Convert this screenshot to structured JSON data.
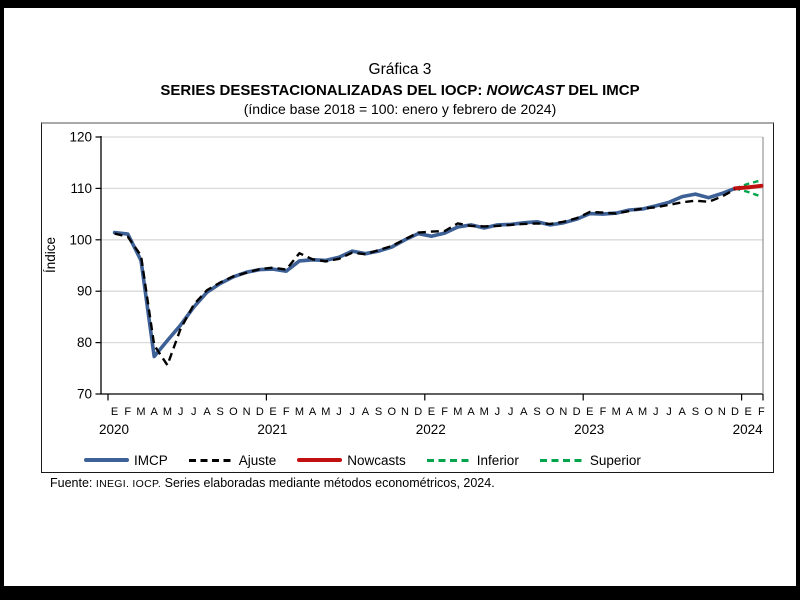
{
  "title": {
    "line1": "Gráfica 3",
    "line2_prefix": "SERIES DESESTACIONALIZADAS DEL IOCP: ",
    "line2_italic": "NOWCAST",
    "line2_suffix": " DEL IMCP",
    "line3": "(índice base 2018 = 100: enero y febrero de 2024)"
  },
  "footer": {
    "prefix": "Fuente: ",
    "source_small": "INEGI. IOCP.",
    "text": " Series elaboradas mediante métodos econométricos, 2024."
  },
  "chart_data": {
    "type": "line",
    "ylabel": "Índice",
    "ylim": [
      70,
      120
    ],
    "yticks": [
      70,
      80,
      90,
      100,
      110,
      120
    ],
    "grid": true,
    "legend_position": "bottom",
    "x_months": [
      "E",
      "F",
      "M",
      "A",
      "M",
      "J",
      "J",
      "A",
      "S",
      "O",
      "N",
      "D",
      "E",
      "F",
      "M",
      "A",
      "M",
      "J",
      "J",
      "A",
      "S",
      "O",
      "N",
      "D",
      "E",
      "F",
      "M",
      "A",
      "M",
      "J",
      "J",
      "A",
      "S",
      "O",
      "N",
      "D",
      "E",
      "F",
      "M",
      "A",
      "M",
      "J",
      "J",
      "A",
      "S",
      "O",
      "N",
      "D",
      "E",
      "F"
    ],
    "years": [
      {
        "label": "2020",
        "month_index": 0
      },
      {
        "label": "2021",
        "month_index": 12
      },
      {
        "label": "2022",
        "month_index": 24
      },
      {
        "label": "2023",
        "month_index": 36
      },
      {
        "label": "2024",
        "month_index": 48
      }
    ],
    "series": [
      {
        "name": "IMCP",
        "color": "#3D6096",
        "style": "solid",
        "width": 3.6,
        "start_index": 0,
        "values": [
          101.4,
          101.1,
          96.0,
          77.3,
          80.4,
          83.4,
          86.9,
          89.8,
          91.5,
          92.8,
          93.7,
          94.2,
          94.3,
          93.9,
          95.9,
          96.1,
          96.0,
          96.6,
          97.8,
          97.3,
          97.8,
          98.6,
          100.0,
          101.2,
          100.7,
          101.3,
          102.5,
          102.9,
          102.3,
          102.9,
          103.0,
          103.3,
          103.5,
          102.9,
          103.3,
          104.0,
          105.1,
          105.0,
          105.2,
          105.8,
          106.0,
          106.6,
          107.3,
          108.4,
          108.9,
          108.2,
          109.0,
          110.0
        ]
      },
      {
        "name": "Ajuste",
        "color": "#000000",
        "style": "dashed",
        "width": 2.4,
        "start_index": 0,
        "values": [
          101.2,
          100.6,
          96.9,
          79.5,
          75.6,
          82.7,
          87.4,
          90.2,
          91.7,
          92.9,
          93.6,
          94.3,
          94.6,
          94.2,
          97.4,
          96.2,
          95.8,
          96.3,
          97.5,
          97.2,
          98.0,
          98.8,
          100.1,
          101.4,
          101.6,
          101.7,
          103.2,
          102.7,
          102.6,
          102.7,
          102.9,
          103.1,
          103.2,
          103.1,
          103.5,
          104.2,
          105.4,
          105.3,
          105.1,
          105.6,
          106.1,
          106.3,
          106.8,
          107.3,
          107.6,
          107.4,
          108.4,
          109.8
        ]
      },
      {
        "name": "Nowcasts",
        "color": "#C01010",
        "style": "solid",
        "width": 4.0,
        "start_index": 47,
        "values": [
          110.0,
          110.2,
          110.5
        ]
      },
      {
        "name": "Inferior",
        "color": "#00A44A",
        "style": "dashed",
        "width": 2.4,
        "start_index": 47,
        "values": [
          110.0,
          109.3,
          108.4
        ]
      },
      {
        "name": "Superior",
        "color": "#00A44A",
        "style": "dashed",
        "width": 2.4,
        "start_index": 47,
        "values": [
          110.0,
          110.9,
          111.6
        ]
      }
    ]
  }
}
